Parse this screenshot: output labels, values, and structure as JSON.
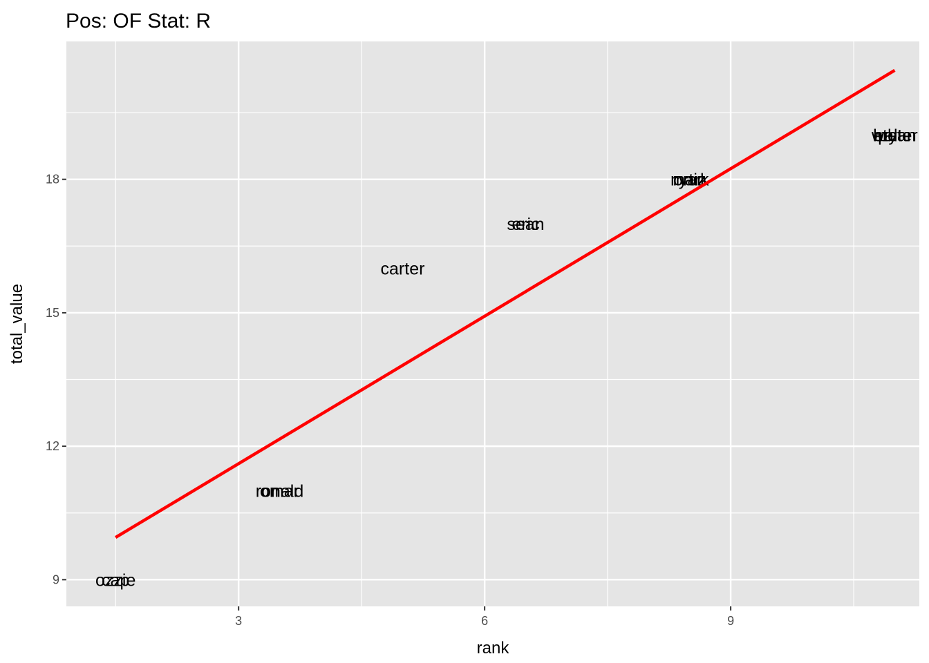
{
  "chart_data": {
    "type": "scatter",
    "title": "Pos: OF Stat: R",
    "xlabel": "rank",
    "ylabel": "total_value",
    "xlim": [
      0.9,
      11.3
    ],
    "ylim": [
      8.4,
      21.1
    ],
    "x_ticks": [
      3,
      6,
      9
    ],
    "y_ticks": [
      9,
      12,
      15,
      18
    ],
    "x_tick_labels": [
      "3",
      "6",
      "9"
    ],
    "y_tick_labels": [
      "9",
      "12",
      "15",
      "18"
    ],
    "grid": true,
    "background": "#e5e5e5",
    "grid_color": "#ffffff",
    "line_color": "#ff0000",
    "points": [
      {
        "label": "ozzie",
        "x": 1.5,
        "y": 9
      },
      {
        "label": "cap",
        "x": 1.5,
        "y": 9
      },
      {
        "label": "ronald",
        "x": 3.5,
        "y": 11
      },
      {
        "label": "omar",
        "x": 3.5,
        "y": 11
      },
      {
        "label": "carter",
        "x": 5.0,
        "y": 16
      },
      {
        "label": "sean",
        "x": 6.5,
        "y": 17
      },
      {
        "label": "eric",
        "x": 6.5,
        "y": 17
      },
      {
        "label": "mark",
        "x": 8.5,
        "y": 18
      },
      {
        "label": "ryan",
        "x": 8.5,
        "y": 18
      },
      {
        "label": "ortiz",
        "x": 8.5,
        "y": 18
      },
      {
        "label": "bryan",
        "x": 11.0,
        "y": 19
      },
      {
        "label": "walter",
        "x": 11.0,
        "y": 19
      },
      {
        "label": "pete",
        "x": 11.0,
        "y": 19
      },
      {
        "label": "ethan",
        "x": 11.0,
        "y": 19
      }
    ],
    "trend_line": {
      "x": [
        1.5,
        11.0
      ],
      "y": [
        9.95,
        20.45
      ]
    }
  }
}
